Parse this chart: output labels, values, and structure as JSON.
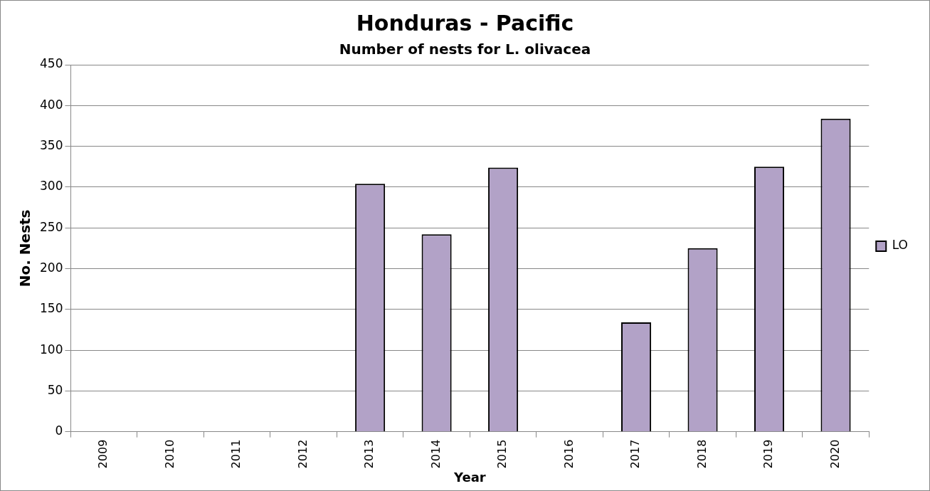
{
  "chart_data": {
    "type": "bar",
    "title": "Honduras - Pacific",
    "subtitle": "Number of nests for L. olivacea",
    "xlabel": "Year",
    "ylabel": "No. Nests",
    "categories": [
      "2009",
      "2010",
      "2011",
      "2012",
      "2013",
      "2014",
      "2015",
      "2016",
      "2017",
      "2018",
      "2019",
      "2020"
    ],
    "series": [
      {
        "name": "LO",
        "color": "#b2a2c7",
        "values": [
          null,
          null,
          null,
          null,
          304,
          242,
          324,
          null,
          134,
          225,
          325,
          384
        ]
      }
    ],
    "ylim": [
      0,
      450
    ],
    "yticks": [
      0,
      50,
      100,
      150,
      200,
      250,
      300,
      350,
      400,
      450
    ],
    "grid": "y",
    "legend": "right"
  }
}
